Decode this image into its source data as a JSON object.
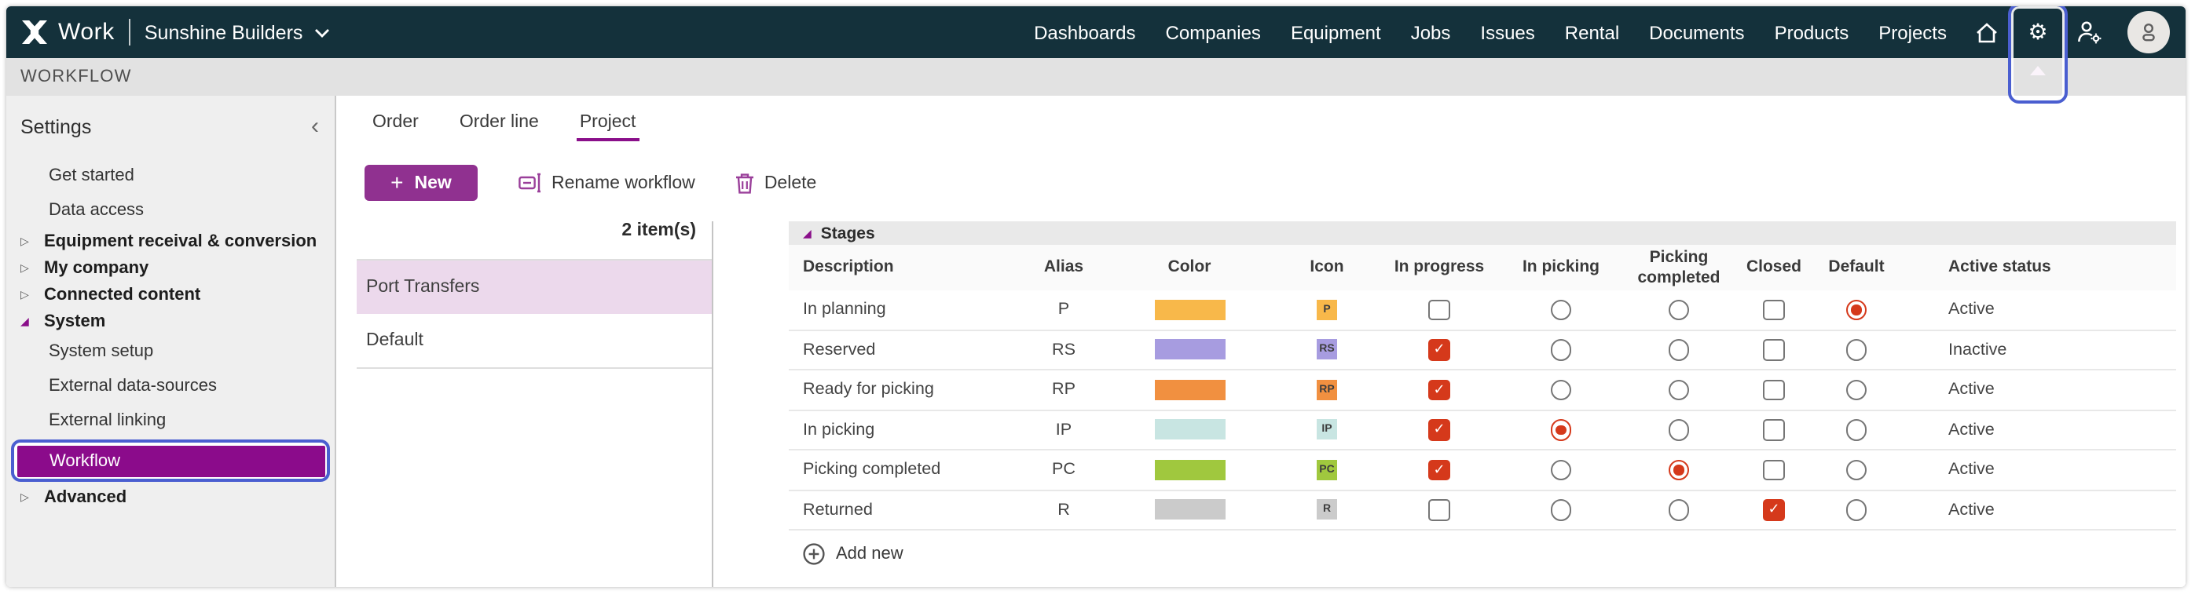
{
  "topbar": {
    "product": "Work",
    "company": "Sunshine Builders",
    "nav": [
      "Dashboards",
      "Companies",
      "Equipment",
      "Jobs",
      "Issues",
      "Rental",
      "Documents",
      "Products",
      "Projects"
    ]
  },
  "page_header": "WORKFLOW",
  "sidebar": {
    "title": "Settings",
    "items": [
      {
        "label": "Get started",
        "type": "child"
      },
      {
        "label": "Data access",
        "type": "child"
      },
      {
        "label": "Equipment receival & conversion",
        "type": "group",
        "state": "collapsed"
      },
      {
        "label": "My company",
        "type": "group",
        "state": "collapsed"
      },
      {
        "label": "Connected content",
        "type": "group",
        "state": "collapsed"
      },
      {
        "label": "System",
        "type": "group",
        "state": "expanded"
      },
      {
        "label": "System setup",
        "type": "child"
      },
      {
        "label": "External data-sources",
        "type": "child"
      },
      {
        "label": "External linking",
        "type": "child"
      },
      {
        "label": "Workflow",
        "type": "child",
        "selected": true,
        "annotated": true
      },
      {
        "label": "Advanced",
        "type": "group",
        "state": "collapsed"
      }
    ]
  },
  "main": {
    "tabs": [
      {
        "label": "Order",
        "active": false
      },
      {
        "label": "Order line",
        "active": false
      },
      {
        "label": "Project",
        "active": true
      }
    ],
    "toolbar": {
      "new_label": "New",
      "rename_label": "Rename workflow",
      "delete_label": "Delete"
    },
    "workflow_list": {
      "count_label": "2 item(s)",
      "items": [
        {
          "name": "Port Transfers",
          "selected": true
        },
        {
          "name": "Default",
          "selected": false
        }
      ]
    },
    "stages": {
      "group_label": "Stages",
      "columns": [
        "Description",
        "Alias",
        "Color",
        "Icon",
        "In progress",
        "In picking",
        "Picking completed",
        "Closed",
        "Default",
        "Active status"
      ],
      "rows": [
        {
          "description": "In planning",
          "alias": "P",
          "color": "#f8b84a",
          "icon": "P",
          "in_progress": false,
          "in_picking": false,
          "picking_completed": false,
          "closed": false,
          "default": true,
          "active_status": "Active"
        },
        {
          "description": "Reserved",
          "alias": "RS",
          "color": "#a79ce0",
          "icon": "RS",
          "in_progress": true,
          "in_picking": false,
          "picking_completed": false,
          "closed": false,
          "default": false,
          "active_status": "Inactive"
        },
        {
          "description": "Ready for picking",
          "alias": "RP",
          "color": "#f19040",
          "icon": "RP",
          "in_progress": true,
          "in_picking": false,
          "picking_completed": false,
          "closed": false,
          "default": false,
          "active_status": "Active"
        },
        {
          "description": "In picking",
          "alias": "IP",
          "color": "#c8e5e2",
          "icon": "IP",
          "in_progress": true,
          "in_picking": true,
          "picking_completed": false,
          "closed": false,
          "default": false,
          "active_status": "Active"
        },
        {
          "description": "Picking completed",
          "alias": "PC",
          "color": "#a0c83e",
          "icon": "PC",
          "in_progress": true,
          "in_picking": false,
          "picking_completed": true,
          "closed": false,
          "default": false,
          "active_status": "Active"
        },
        {
          "description": "Returned",
          "alias": "R",
          "color": "#cbcbcb",
          "icon": "R",
          "in_progress": false,
          "in_picking": false,
          "picking_completed": false,
          "closed": true,
          "default": false,
          "active_status": "Active"
        }
      ],
      "add_new_label": "Add new"
    }
  },
  "colors": {
    "topbar_bg": "#14313b",
    "accent_button": "#903190",
    "selected_purple": "#8b0b8b",
    "tab_underline": "#8a0f8a",
    "selected_row_bg": "#ecd9ec",
    "annotation_blue": "#4a5ed0",
    "checked_red": "#d5391b",
    "sidebar_bg": "#efefef",
    "header_strip_bg": "#e2e2e2",
    "icon_purple": "#9a3f9a"
  }
}
